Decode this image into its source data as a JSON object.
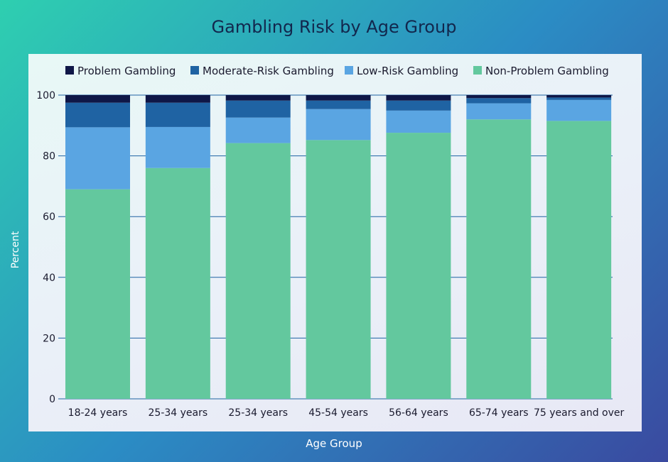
{
  "chart_data": {
    "type": "bar",
    "stacked": true,
    "title": "Gambling Risk by Age Group",
    "xlabel": "Age Group",
    "ylabel": "Percent",
    "ylim": [
      0,
      100
    ],
    "yticks": [
      0,
      20,
      40,
      60,
      80,
      100
    ],
    "categories": [
      "18-24 years",
      "25-34 years",
      "25-34 years",
      "45-54 years",
      "56-64 years",
      "65-74 years",
      "75 years and over"
    ],
    "series": [
      {
        "name": "Non-Problem Gambling",
        "color": "#63c89e",
        "values": [
          69.0,
          76.0,
          84.2,
          85.2,
          87.6,
          92.0,
          91.5
        ]
      },
      {
        "name": "Low-Risk Gambling",
        "color": "#5aa5e2",
        "values": [
          20.4,
          13.5,
          8.4,
          10.2,
          7.3,
          5.3,
          6.9
        ]
      },
      {
        "name": "Moderate-Risk Gambling",
        "color": "#1f63a3",
        "values": [
          8.1,
          8.0,
          5.6,
          2.8,
          3.3,
          1.7,
          0.8
        ]
      },
      {
        "name": "Problem Gambling",
        "color": "#0f1747",
        "values": [
          2.5,
          2.5,
          1.8,
          1.8,
          1.8,
          1.0,
          0.8
        ]
      }
    ],
    "legend_order": [
      "Problem Gambling",
      "Moderate-Risk Gambling",
      "Low-Risk Gambling",
      "Non-Problem Gambling"
    ],
    "legend_position": "top",
    "grid": true
  }
}
